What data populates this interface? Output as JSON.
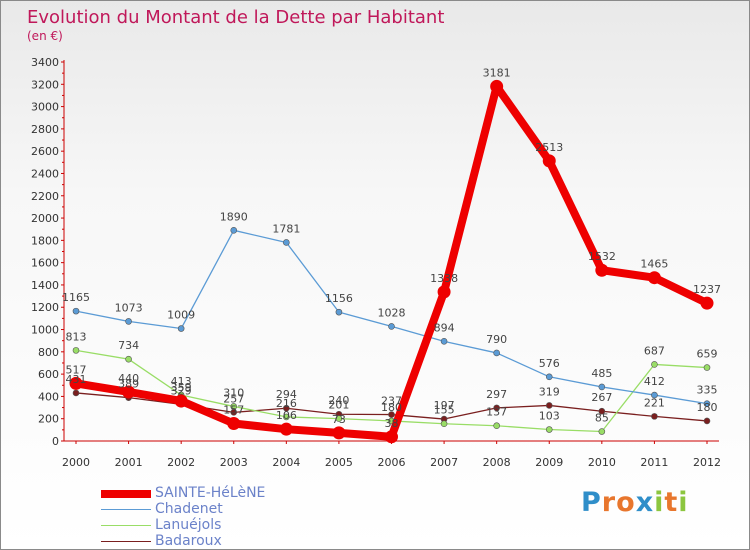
{
  "header": {
    "title": "Evolution du Montant de la Dette par Habitant",
    "subtitle": "(en €)"
  },
  "logo": {
    "text": "Proxiti"
  },
  "chart_data": {
    "type": "line",
    "title": "Evolution du Montant de la Dette par Habitant",
    "subtitle": "(en €)",
    "xlabel": "",
    "ylabel": "",
    "x": [
      "2000",
      "2001",
      "2002",
      "2003",
      "2004",
      "2005",
      "2006",
      "2007",
      "2008",
      "2009",
      "2010",
      "2011",
      "2012"
    ],
    "ylim": [
      0,
      3400
    ],
    "yticks": [
      0,
      200,
      400,
      600,
      800,
      1000,
      1200,
      1400,
      1600,
      1800,
      2000,
      2200,
      2400,
      2600,
      2800,
      3000,
      3200,
      3400
    ],
    "grid": false,
    "legend_position": "bottom-left",
    "series": [
      {
        "name": "SAINTE-HéLèNE",
        "color": "#ee0000",
        "emphasis": true,
        "values": [
          517,
          440,
          359,
          157,
          106,
          73,
          38,
          1338,
          3181,
          2513,
          1532,
          1465,
          1237
        ],
        "labels": [
          "517",
          "440",
          "359",
          "157",
          "106",
          "73",
          "38",
          "1338",
          "3181",
          "2513",
          "1532",
          "1465",
          "1237"
        ]
      },
      {
        "name": "Chadenet",
        "color": "#5b9bd5",
        "values": [
          1165,
          1073,
          1009,
          1890,
          1781,
          1156,
          1028,
          894,
          790,
          576,
          485,
          412,
          335
        ],
        "labels": [
          "1165",
          "1073",
          "1009",
          "1890",
          "1781",
          "1156",
          "1028",
          "894",
          "790",
          "576",
          "485",
          "412",
          "335"
        ]
      },
      {
        "name": "Lanuéjols",
        "color": "#99dd66",
        "values": [
          813,
          734,
          413,
          310,
          216,
          201,
          180,
          155,
          137,
          103,
          85,
          687,
          659
        ],
        "labels": [
          "813",
          "734",
          "413",
          "310",
          "216",
          "201",
          "180",
          "155",
          "137",
          "103",
          "85",
          "687",
          "659"
        ]
      },
      {
        "name": "Badaroux",
        "color": "#7a1f1f",
        "values": [
          431,
          389,
          329,
          257,
          294,
          240,
          237,
          197,
          297,
          319,
          267,
          221,
          180
        ],
        "labels": [
          "431",
          "389",
          "329",
          "257",
          "294",
          "240",
          "237",
          "197",
          "297",
          "319",
          "267",
          "221",
          "180"
        ]
      }
    ]
  }
}
